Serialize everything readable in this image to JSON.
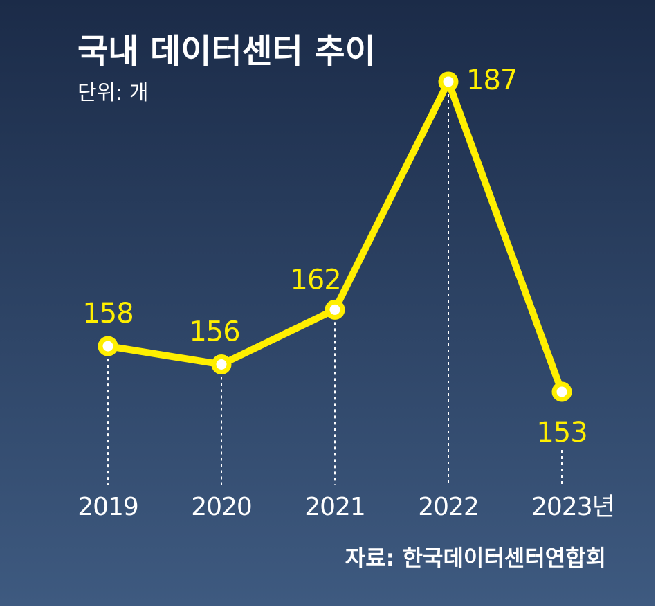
{
  "chart_data": {
    "type": "line",
    "title": "국내 데이터센터 추이",
    "unit_label": "단위: 개",
    "source": "자료: 한국데이터센터연합회",
    "categories": [
      "2019",
      "2020",
      "2021",
      "2022",
      "2023년"
    ],
    "series": [
      {
        "values": [
          158,
          156,
          162,
          187,
          153
        ]
      }
    ],
    "data_labels": [
      "158",
      "156",
      "162",
      "187",
      "153"
    ],
    "grid": false,
    "legend": "none",
    "colors": {
      "line": "#ffef00",
      "background_top": "#1b2b48",
      "background_bottom": "#3e5a80",
      "text": "#ffffff"
    }
  }
}
